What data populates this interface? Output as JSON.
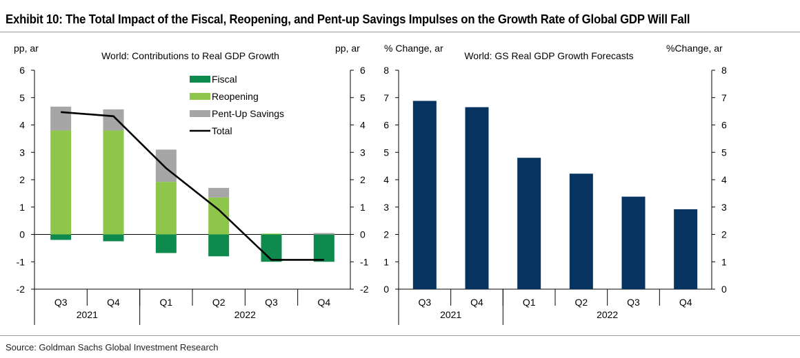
{
  "page": {
    "title": "Exhibit 10: The Total Impact of the Fiscal, Reopening, and Pent-up Savings Impulses on the Growth Rate of Global GDP Will Fall",
    "source": "Source: Goldman Sachs Global Investment Research"
  },
  "colors": {
    "fiscal": "#0f8a4e",
    "reopening": "#8dc64b",
    "pentup": "#a6a6a6",
    "total": "#000000",
    "forecast": "#06335f"
  },
  "chart_data": [
    {
      "type": "bar",
      "stacked": true,
      "title": "World: Contributions to Real GDP Growth",
      "ylabel_left": "pp, ar",
      "ylabel_right": "pp, ar",
      "ylim": [
        -2,
        6
      ],
      "yticks": [
        -2,
        -1,
        0,
        1,
        2,
        3,
        4,
        5,
        6
      ],
      "categories": [
        "Q3",
        "Q4",
        "Q1",
        "Q2",
        "Q3",
        "Q4"
      ],
      "year_groups": [
        {
          "label": "2021",
          "count": 2
        },
        {
          "label": "2022",
          "count": 4
        }
      ],
      "legend_position": "top-center",
      "series": [
        {
          "name": "Fiscal",
          "type": "bar",
          "values": [
            -0.2,
            -0.25,
            -0.68,
            -0.8,
            -1.0,
            -1.0
          ]
        },
        {
          "name": "Reopening",
          "type": "bar",
          "values": [
            3.8,
            3.8,
            1.92,
            1.35,
            0.03,
            0.0
          ]
        },
        {
          "name": "Pent-Up Savings",
          "type": "bar",
          "values": [
            0.87,
            0.77,
            1.18,
            0.35,
            0.0,
            0.05
          ]
        },
        {
          "name": "Total",
          "type": "line",
          "values": [
            4.47,
            4.32,
            2.42,
            0.9,
            -0.93,
            -0.93
          ]
        }
      ]
    },
    {
      "type": "bar",
      "title": "World: GS Real GDP Growth Forecasts",
      "ylabel_left": "% Change, ar",
      "ylabel_right": "%Change, ar",
      "ylim": [
        0,
        8
      ],
      "yticks": [
        0,
        1,
        2,
        3,
        4,
        5,
        6,
        7,
        8
      ],
      "categories": [
        "Q3",
        "Q4",
        "Q1",
        "Q2",
        "Q3",
        "Q4"
      ],
      "year_groups": [
        {
          "label": "2021",
          "count": 2
        },
        {
          "label": "2022",
          "count": 4
        }
      ],
      "values": [
        6.88,
        6.65,
        4.8,
        4.22,
        3.38,
        2.92
      ]
    }
  ]
}
